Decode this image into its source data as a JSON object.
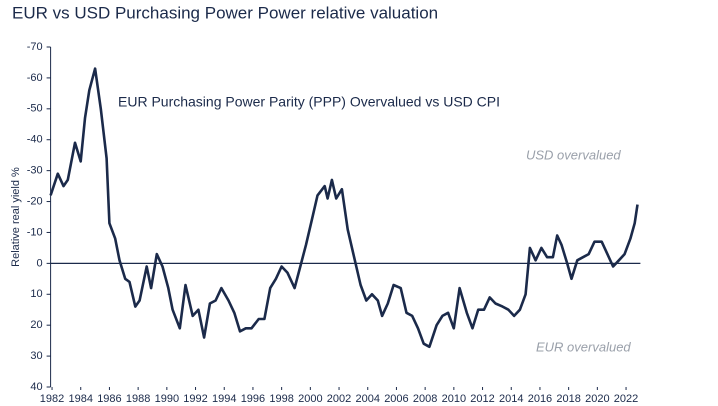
{
  "chart_data": {
    "type": "line",
    "title": "EUR vs USD Purchasing Power Power relative valuation",
    "annotations": [
      "EUR Purchasing Power Parity (PPP) Overvalued vs USD CPI",
      "USD overvalued",
      "EUR overvalued"
    ],
    "y_label": "Relative real yield %",
    "y_inverted": true,
    "xlim": [
      1981.9,
      2023.0
    ],
    "xticks": [
      1982,
      1984,
      1986,
      1988,
      1990,
      1992,
      1994,
      1996,
      1998,
      2000,
      2002,
      2004,
      2006,
      2008,
      2010,
      2012,
      2014,
      2016,
      2018,
      2020,
      2022
    ],
    "ylim": [
      -70,
      40
    ],
    "yticks": [
      -70,
      -60,
      -50,
      -40,
      -30,
      -20,
      -10,
      0,
      10,
      20,
      30,
      40
    ],
    "series": [
      {
        "color": "#1b2a4a",
        "x": [
          1981.9,
          1982.4,
          1982.8,
          1983.1,
          1983.6,
          1984.0,
          1984.3,
          1984.6,
          1985.0,
          1985.4,
          1985.8,
          1986.0,
          1986.4,
          1986.7,
          1987.1,
          1987.4,
          1987.8,
          1988.1,
          1988.6,
          1988.9,
          1989.3,
          1989.7,
          1990.1,
          1990.4,
          1990.9,
          1991.3,
          1991.8,
          1992.2,
          1992.6,
          1993.0,
          1993.4,
          1993.8,
          1994.3,
          1994.7,
          1995.1,
          1995.5,
          1995.9,
          1996.4,
          1996.8,
          1997.2,
          1997.6,
          1998.0,
          1998.4,
          1998.9,
          1999.3,
          1999.7,
          2000.1,
          2000.5,
          2001.0,
          2001.2,
          2001.5,
          2001.8,
          2002.2,
          2002.6,
          2003.0,
          2003.5,
          2003.9,
          2004.3,
          2004.7,
          2005.0,
          2005.4,
          2005.8,
          2006.3,
          2006.7,
          2007.1,
          2007.5,
          2007.9,
          2008.3,
          2008.8,
          2009.2,
          2009.6,
          2010.0,
          2010.4,
          2010.9,
          2011.3,
          2011.7,
          2012.1,
          2012.5,
          2012.9,
          2013.4,
          2013.8,
          2014.2,
          2014.6,
          2015.0,
          2015.3,
          2015.7,
          2016.1,
          2016.5,
          2016.9,
          2017.2,
          2017.5,
          2017.9,
          2018.2,
          2018.6,
          2019.0,
          2019.4,
          2019.8,
          2020.3,
          2020.7,
          2021.1,
          2021.5,
          2021.9,
          2022.3,
          2022.6,
          2022.8
        ],
        "values": [
          -22,
          -29,
          -25,
          -27,
          -39,
          -33,
          -47,
          -56,
          -63,
          -50,
          -34,
          -13,
          -8,
          -1,
          5,
          6,
          14,
          12,
          1,
          8,
          -3,
          1,
          8,
          15,
          21,
          7,
          17,
          15,
          24,
          13,
          12,
          8,
          12,
          16,
          22,
          21,
          21,
          18,
          18,
          8,
          5,
          1,
          3,
          8,
          1,
          -6,
          -14,
          -22,
          -25,
          -21,
          -27,
          -21,
          -24,
          -11,
          -3,
          7,
          12,
          10,
          12,
          17,
          13,
          7,
          8,
          16,
          17,
          21,
          26,
          27,
          20,
          17,
          16,
          21,
          8,
          16,
          21,
          15,
          15,
          11,
          13,
          14,
          15,
          17,
          15,
          10,
          -5,
          -1,
          -5,
          -2,
          -2,
          -9,
          -6,
          0,
          5,
          -1,
          -2,
          -3,
          -7,
          -7,
          -3,
          1,
          -1,
          -3,
          -8,
          -13,
          -19
        ]
      }
    ]
  }
}
